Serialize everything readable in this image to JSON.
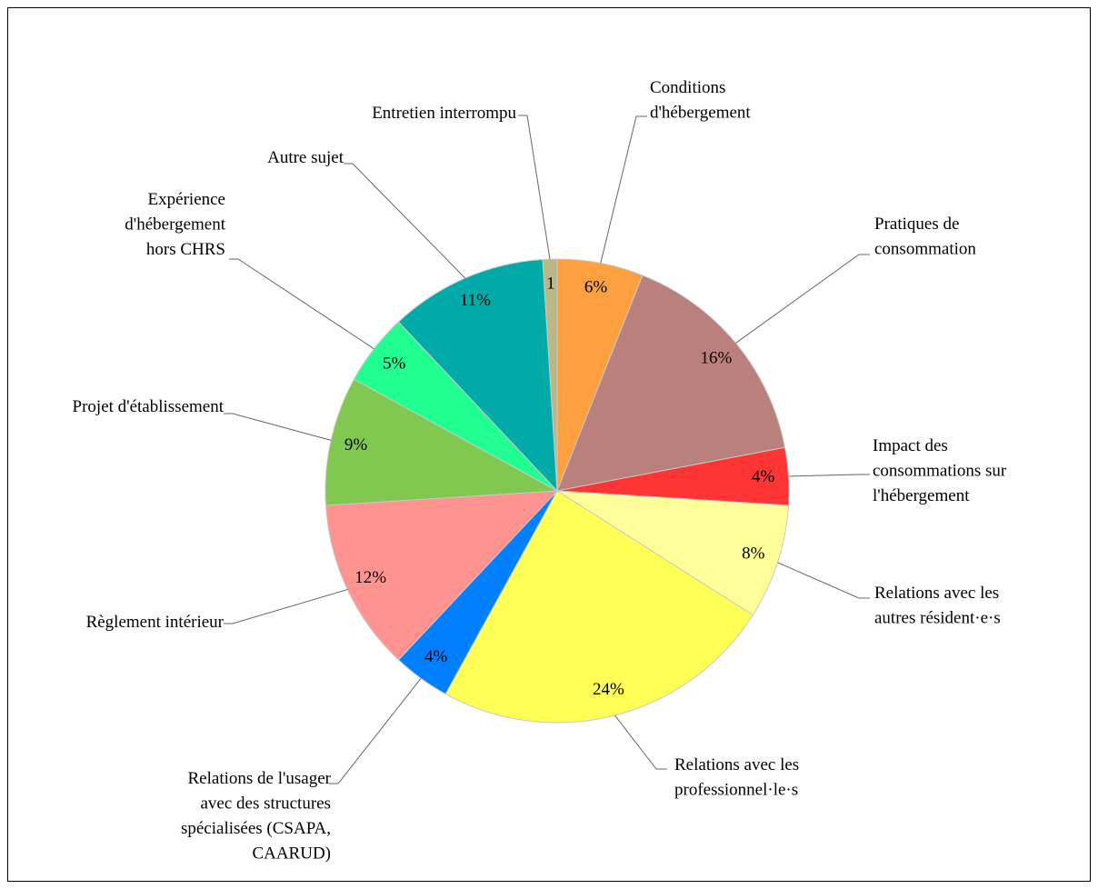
{
  "chart_data": {
    "type": "pie",
    "categories": [
      "Conditions\nd'hébergement",
      "Pratiques de\nconsommation",
      "Impact des\nconsommations sur\nl'hébergement",
      "Relations avec les\nautres résident·e·s",
      "Relations avec les\nprofessionnel·le·s",
      "Relations de l'usager\navec des structures\nspécialisées (CSAPA,\nCAARUD)",
      "Règlement intérieur",
      "Projet d'établissement",
      "Expérience\nd'hébergement\nhors CHRS",
      "Autre sujet",
      "Entretien interrompu"
    ],
    "values": [
      6,
      16,
      4,
      8,
      24,
      4,
      12,
      9,
      5,
      11,
      1
    ],
    "value_labels": [
      "6%",
      "16%",
      "4%",
      "8%",
      "24%",
      "4%",
      "12%",
      "9%",
      "5%",
      "11%",
      "1"
    ],
    "colors": [
      "#FFA040",
      "#BA807B",
      "#FF3535",
      "#FFFF99",
      "#FFFF55",
      "#0080FF",
      "#FF9390",
      "#80C850",
      "#20FF90",
      "#00AAA8",
      "#B8B888"
    ]
  }
}
